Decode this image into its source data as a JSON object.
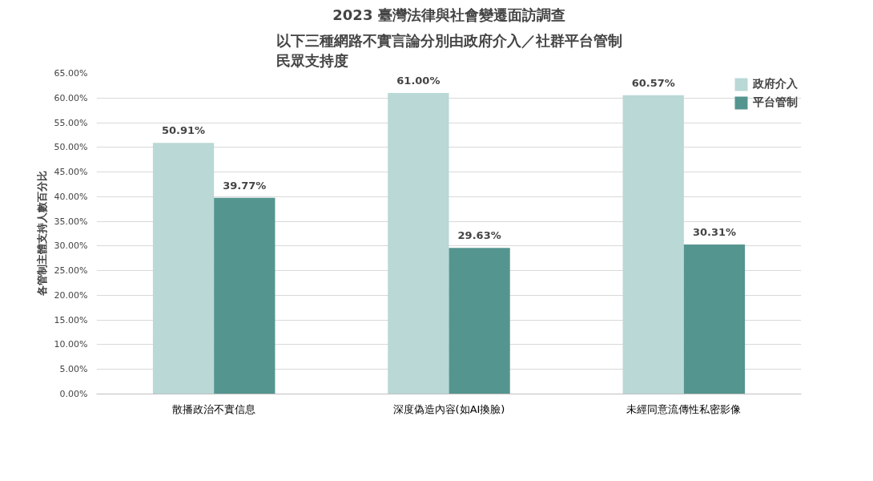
{
  "chart_data": {
    "type": "bar",
    "title": "2023 臺灣法律與社會變遷面訪調查",
    "subtitle": "以下三種網路不實言論分別由政府介入／社群平台管制民眾支持度",
    "ylabel": "各管制主體支持人數百分比",
    "categories": [
      "散播政治不實信息",
      "深度偽造內容(如AI換臉)",
      "未經同意流傳性私密影像"
    ],
    "series": [
      {
        "name": "政府介入",
        "color": "#b9d8d6",
        "values": [
          50.91,
          61.0,
          60.57
        ]
      },
      {
        "name": "平台管制",
        "color": "#55958f",
        "values": [
          39.77,
          29.63,
          30.31
        ]
      }
    ],
    "ylim": [
      0,
      65
    ],
    "yticks": [
      {
        "value": 0,
        "label": "0.00%"
      },
      {
        "value": 5,
        "label": "5.00%"
      },
      {
        "value": 10,
        "label": "10.00%"
      },
      {
        "value": 15,
        "label": "15.00%"
      },
      {
        "value": 20,
        "label": "20.00%"
      },
      {
        "value": 25,
        "label": "25.00%"
      },
      {
        "value": 30,
        "label": "30.00%"
      },
      {
        "value": 35,
        "label": "35.00%"
      },
      {
        "value": 40,
        "label": "40.00%"
      },
      {
        "value": 45,
        "label": "45.00%"
      },
      {
        "value": 50,
        "label": "50.00%"
      },
      {
        "value": 55,
        "label": "55.00%"
      },
      {
        "value": 60,
        "label": "60.00%"
      },
      {
        "value": 65,
        "label": "65.00%"
      }
    ],
    "value_labels": [
      [
        "50.91%",
        "61.00%",
        "60.57%"
      ],
      [
        "39.77%",
        "29.63%",
        "30.31%"
      ]
    ],
    "grid": "y",
    "legend": "top right"
  }
}
